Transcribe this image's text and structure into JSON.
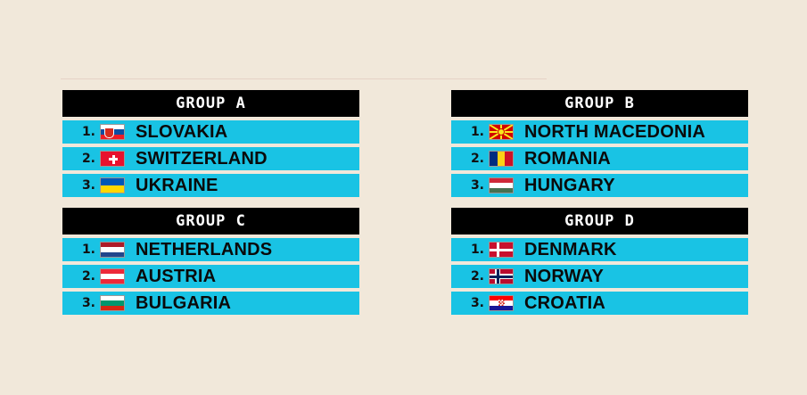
{
  "groups": [
    {
      "title": "GROUP A",
      "teams": [
        {
          "rank": "1.",
          "name": "SLOVAKIA",
          "flag": "slovakia-flag-icon"
        },
        {
          "rank": "2.",
          "name": "SWITZERLAND",
          "flag": "switzerland-flag-icon"
        },
        {
          "rank": "3.",
          "name": "UKRAINE",
          "flag": "ukraine-flag-icon"
        }
      ]
    },
    {
      "title": "GROUP B",
      "teams": [
        {
          "rank": "1.",
          "name": "NORTH MACEDONIA",
          "flag": "north-macedonia-flag-icon"
        },
        {
          "rank": "2.",
          "name": "ROMANIA",
          "flag": "romania-flag-icon"
        },
        {
          "rank": "3.",
          "name": "HUNGARY",
          "flag": "hungary-flag-icon"
        }
      ]
    },
    {
      "title": "GROUP C",
      "teams": [
        {
          "rank": "1.",
          "name": "NETHERLANDS",
          "flag": "netherlands-flag-icon"
        },
        {
          "rank": "2.",
          "name": "AUSTRIA",
          "flag": "austria-flag-icon"
        },
        {
          "rank": "3.",
          "name": "BULGARIA",
          "flag": "bulgaria-flag-icon"
        }
      ]
    },
    {
      "title": "GROUP D",
      "teams": [
        {
          "rank": "1.",
          "name": "DENMARK",
          "flag": "denmark-flag-icon"
        },
        {
          "rank": "2.",
          "name": "NORWAY",
          "flag": "norway-flag-icon"
        },
        {
          "rank": "3.",
          "name": "CROATIA",
          "flag": "croatia-flag-icon"
        }
      ]
    }
  ],
  "colors": {
    "background": "#f1e8da",
    "header": "#000000",
    "row": "#19c3e4"
  }
}
